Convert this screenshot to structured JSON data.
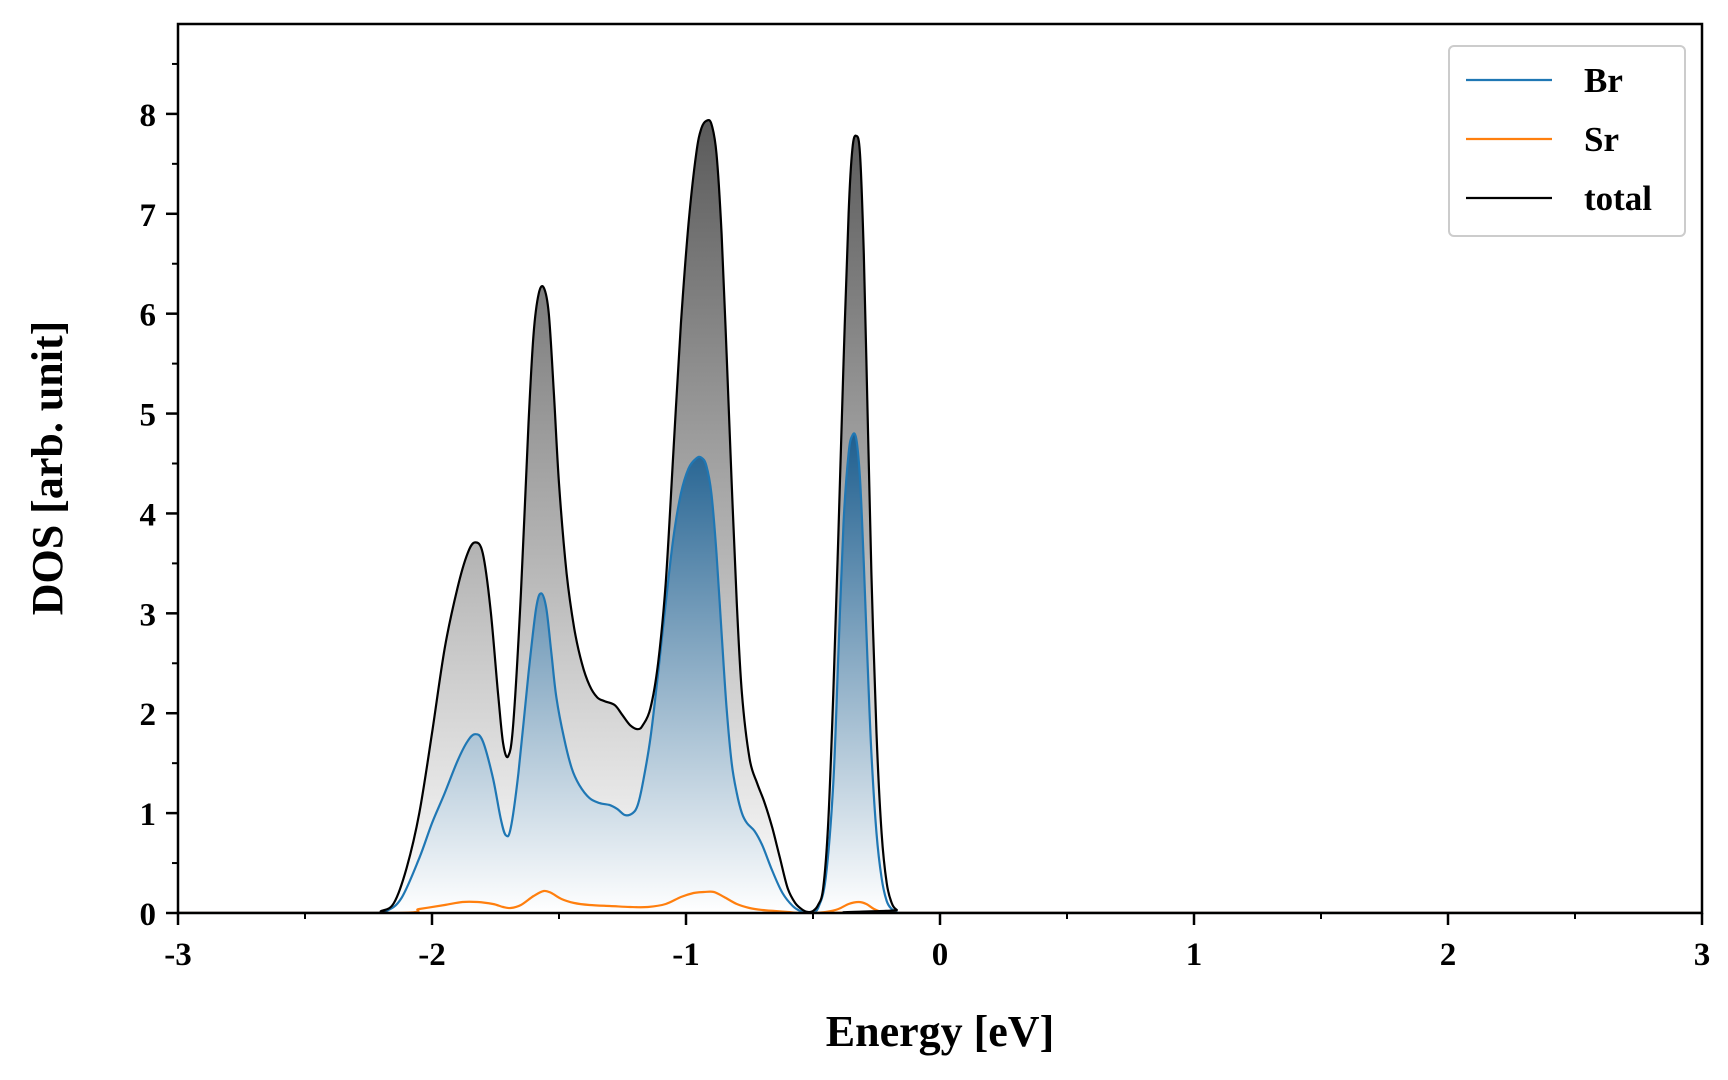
{
  "chart_data": {
    "type": "area",
    "title": "",
    "xlabel": "Energy [eV]",
    "ylabel": "DOS [arb. unit]",
    "xlim": [
      -3,
      3
    ],
    "ylim": [
      0,
      8.9
    ],
    "xticks": [
      -3,
      -2,
      -1,
      0,
      1,
      2,
      3
    ],
    "xtick_labels": [
      "-3",
      "-2",
      "-1",
      "0",
      "1",
      "2",
      "3"
    ],
    "yticks": [
      0,
      1,
      2,
      3,
      4,
      5,
      6,
      7,
      8
    ],
    "ytick_labels": [
      "0",
      "1",
      "2",
      "3",
      "4",
      "5",
      "6",
      "7",
      "8"
    ],
    "grid": false,
    "legend_position": "top-right",
    "series": [
      {
        "name": "Br",
        "color": "#1f77b4",
        "fill": "gradient",
        "x": [
          -3.0,
          -2.25,
          -2.18,
          -2.12,
          -2.05,
          -2.0,
          -1.95,
          -1.9,
          -1.86,
          -1.83,
          -1.8,
          -1.76,
          -1.73,
          -1.71,
          -1.69,
          -1.66,
          -1.62,
          -1.59,
          -1.57,
          -1.55,
          -1.53,
          -1.51,
          -1.48,
          -1.45,
          -1.42,
          -1.38,
          -1.34,
          -1.3,
          -1.27,
          -1.24,
          -1.21,
          -1.19,
          -1.17,
          -1.14,
          -1.11,
          -1.08,
          -1.05,
          -1.02,
          -0.99,
          -0.96,
          -0.94,
          -0.92,
          -0.9,
          -0.88,
          -0.86,
          -0.84,
          -0.82,
          -0.8,
          -0.78,
          -0.76,
          -0.73,
          -0.7,
          -0.66,
          -0.62,
          -0.58,
          -0.55,
          -0.52,
          -0.5,
          -0.48,
          -0.45,
          -0.42,
          -0.4,
          -0.38,
          -0.36,
          -0.345,
          -0.33,
          -0.315,
          -0.3,
          -0.285,
          -0.27,
          -0.25,
          -0.23,
          -0.21,
          -0.19,
          -0.17,
          -0.14,
          3.0
        ],
        "y": [
          0.0,
          0.0,
          0.02,
          0.15,
          0.55,
          0.9,
          1.2,
          1.52,
          1.72,
          1.79,
          1.72,
          1.35,
          0.95,
          0.78,
          0.85,
          1.4,
          2.4,
          3.05,
          3.2,
          3.05,
          2.6,
          2.15,
          1.75,
          1.45,
          1.28,
          1.15,
          1.1,
          1.08,
          1.04,
          0.98,
          1.0,
          1.08,
          1.3,
          1.75,
          2.4,
          3.1,
          3.75,
          4.2,
          4.45,
          4.55,
          4.56,
          4.48,
          4.2,
          3.6,
          2.8,
          2.05,
          1.5,
          1.2,
          1.0,
          0.9,
          0.82,
          0.68,
          0.42,
          0.2,
          0.07,
          0.02,
          0.0,
          0.01,
          0.05,
          0.35,
          1.3,
          2.6,
          3.9,
          4.6,
          4.78,
          4.75,
          4.35,
          3.5,
          2.5,
          1.6,
          0.8,
          0.35,
          0.12,
          0.04,
          0.01,
          0.0,
          0.0
        ]
      },
      {
        "name": "Sr",
        "color": "#ff7f0e",
        "fill": "none",
        "x": [
          -3.0,
          -2.15,
          -2.05,
          -1.95,
          -1.88,
          -1.82,
          -1.76,
          -1.72,
          -1.69,
          -1.65,
          -1.6,
          -1.56,
          -1.53,
          -1.49,
          -1.44,
          -1.38,
          -1.3,
          -1.22,
          -1.15,
          -1.08,
          -1.02,
          -0.97,
          -0.93,
          -0.89,
          -0.85,
          -0.8,
          -0.75,
          -0.7,
          -0.65,
          -0.6,
          -0.55,
          -0.5,
          -0.45,
          -0.4,
          -0.36,
          -0.32,
          -0.29,
          -0.26,
          -0.23,
          -0.2,
          3.0
        ],
        "y": [
          0.0,
          0.0,
          0.04,
          0.08,
          0.11,
          0.11,
          0.09,
          0.06,
          0.05,
          0.08,
          0.17,
          0.22,
          0.2,
          0.14,
          0.1,
          0.08,
          0.07,
          0.06,
          0.06,
          0.09,
          0.16,
          0.2,
          0.21,
          0.21,
          0.16,
          0.09,
          0.05,
          0.03,
          0.02,
          0.01,
          0.0,
          0.0,
          0.01,
          0.04,
          0.09,
          0.11,
          0.09,
          0.04,
          0.01,
          0.0,
          0.0
        ]
      },
      {
        "name": "total",
        "color": "#000000",
        "fill": "gradient",
        "x": [
          -3.0,
          -2.25,
          -2.2,
          -2.15,
          -2.1,
          -2.05,
          -2.0,
          -1.95,
          -1.9,
          -1.86,
          -1.83,
          -1.8,
          -1.77,
          -1.74,
          -1.72,
          -1.7,
          -1.68,
          -1.65,
          -1.62,
          -1.6,
          -1.58,
          -1.56,
          -1.54,
          -1.52,
          -1.5,
          -1.47,
          -1.44,
          -1.41,
          -1.38,
          -1.35,
          -1.32,
          -1.28,
          -1.25,
          -1.22,
          -1.19,
          -1.17,
          -1.14,
          -1.11,
          -1.08,
          -1.05,
          -1.02,
          -0.99,
          -0.96,
          -0.94,
          -0.92,
          -0.9,
          -0.88,
          -0.86,
          -0.84,
          -0.82,
          -0.8,
          -0.78,
          -0.75,
          -0.72,
          -0.69,
          -0.66,
          -0.63,
          -0.6,
          -0.57,
          -0.54,
          -0.52,
          -0.5,
          -0.48,
          -0.46,
          -0.44,
          -0.42,
          -0.4,
          -0.38,
          -0.36,
          -0.345,
          -0.33,
          -0.315,
          -0.3,
          -0.285,
          -0.27,
          -0.25,
          -0.23,
          -0.21,
          -0.19,
          -0.17,
          -0.14,
          3.0
        ],
        "y": [
          0.0,
          0.0,
          0.02,
          0.1,
          0.45,
          1.0,
          1.8,
          2.65,
          3.25,
          3.6,
          3.71,
          3.6,
          3.05,
          2.2,
          1.7,
          1.57,
          1.9,
          3.2,
          4.9,
          5.8,
          6.2,
          6.26,
          6.0,
          5.2,
          4.3,
          3.4,
          2.85,
          2.5,
          2.28,
          2.16,
          2.12,
          2.08,
          1.98,
          1.88,
          1.84,
          1.88,
          2.05,
          2.5,
          3.3,
          4.6,
          5.9,
          6.9,
          7.6,
          7.85,
          7.93,
          7.9,
          7.6,
          6.8,
          5.6,
          4.3,
          3.1,
          2.2,
          1.55,
          1.3,
          1.1,
          0.85,
          0.55,
          0.25,
          0.1,
          0.03,
          0.01,
          0.02,
          0.08,
          0.25,
          0.9,
          2.2,
          3.8,
          5.5,
          7.0,
          7.65,
          7.78,
          7.6,
          6.6,
          5.0,
          3.4,
          1.8,
          0.8,
          0.3,
          0.1,
          0.03,
          0.0,
          0.0
        ]
      }
    ]
  }
}
